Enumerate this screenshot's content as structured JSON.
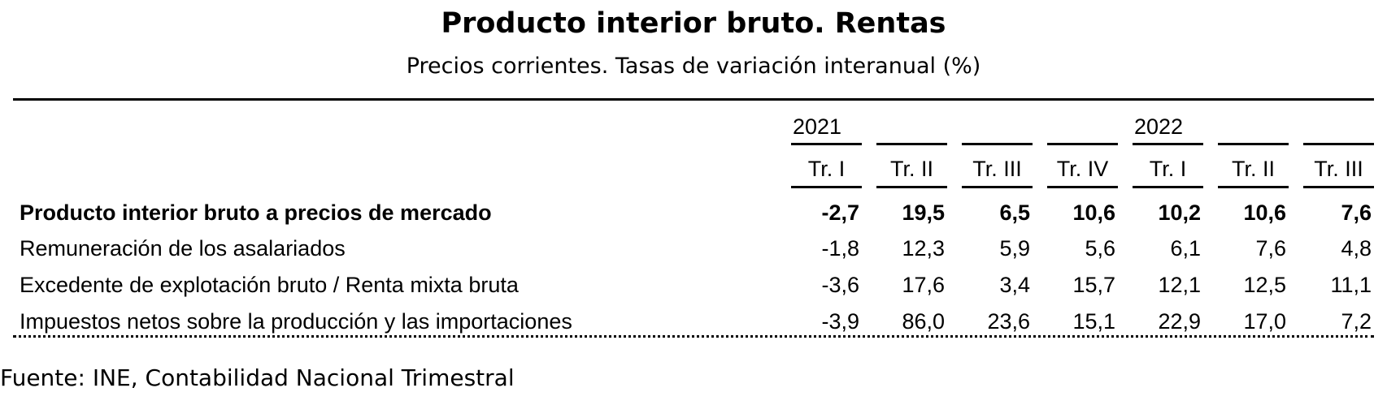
{
  "title": "Producto interior bruto. Rentas",
  "subtitle": "Precios corrientes. Tasas de variación interanual (%)",
  "years": [
    "2021",
    "2022"
  ],
  "quarters": [
    "Tr. I",
    "Tr. II",
    "Tr. III",
    "Tr. IV",
    "Tr. I",
    "Tr. II",
    "Tr. III"
  ],
  "rows": [
    {
      "label": "Producto interior bruto a precios de mercado",
      "bold": true,
      "values": [
        "-2,7",
        "19,5",
        "6,5",
        "10,6",
        "10,2",
        "10,6",
        "7,6"
      ]
    },
    {
      "label": "Remuneración de los asalariados",
      "bold": false,
      "values": [
        "-1,8",
        "12,3",
        "5,9",
        "5,6",
        "6,1",
        "7,6",
        "4,8"
      ]
    },
    {
      "label": "Excedente de explotación bruto / Renta mixta bruta",
      "bold": false,
      "values": [
        "-3,6",
        "17,6",
        "3,4",
        "15,7",
        "12,1",
        "12,5",
        "11,1"
      ]
    },
    {
      "label": "Impuestos netos sobre la producción y las importaciones",
      "bold": false,
      "values": [
        "-3,9",
        "86,0",
        "23,6",
        "15,1",
        "22,9",
        "17,0",
        "7,2"
      ]
    }
  ],
  "source": "Fuente: INE, Contabilidad Nacional Trimestral"
}
